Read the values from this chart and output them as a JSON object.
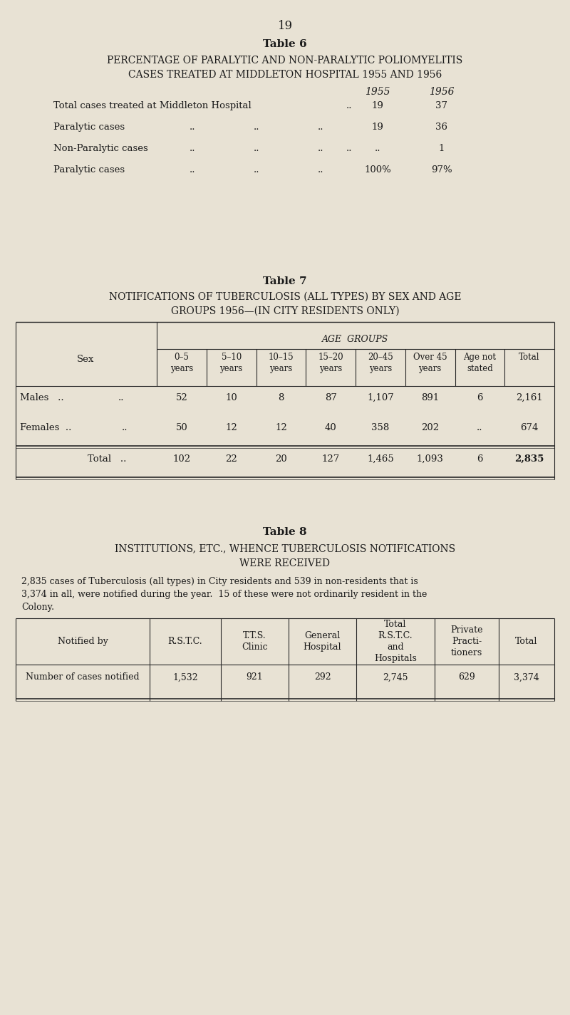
{
  "bg_color": "#e8e2d4",
  "text_color": "#1a1a1a",
  "page_number": "19",
  "table6": {
    "title": "Table 6",
    "subtitle_line1": "PERCENTAGE OF PARALYTIC AND NON-PARALYTIC POLIOMYELITIS",
    "subtitle_line2": "CASES TREATED AT MIDDLETON HOSPITAL 1955 AND 1956",
    "year1": "1955",
    "year2": "1956",
    "rows": [
      {
        "label": "Total cases treated at Middleton Hospital",
        "dots": "..",
        "v1955": "19",
        "v1956": "37"
      },
      {
        "label": "Paralytic cases",
        "dots": "..          ..          ..",
        "v1955": "19",
        "v1956": "36"
      },
      {
        "label": "Non-Paralytic cases",
        "dots": "..          ..          ..",
        "v1955": "..",
        "v1956": "1"
      },
      {
        "label": "Paralytic cases",
        "dots": "..          ..          ..",
        "v1955": "100%",
        "v1956": "97%"
      }
    ]
  },
  "table7": {
    "title": "Table 7",
    "subtitle_line1": "NOTIFICATIONS OF TUBERCULOSIS (ALL TYPES) BY SEX AND AGE",
    "subtitle_line2": "GROUPS 1956—(IN CITY RESIDENTS ONLY)",
    "age_group_header": "AGE  GROUPS",
    "sex_header": "Sex",
    "col_headers": [
      "0–5\nyears",
      "5–10\nyears",
      "10–15\nyears",
      "15–20\nyears",
      "20–45\nyears",
      "Over 45\nyears",
      "Age not\nstated",
      "Total"
    ],
    "rows": [
      {
        "label": "Males   ..",
        "dots": "        ..",
        "values": [
          "52",
          "10",
          "8",
          "87",
          "1,107",
          "891",
          "6",
          "2,161"
        ]
      },
      {
        "label": "Females  ..",
        "dots": "        ..",
        "values": [
          "50",
          "12",
          "12",
          "40",
          "358",
          "202",
          "..",
          "674"
        ]
      },
      {
        "label": "Total  ..",
        "dots": "",
        "values": [
          "102",
          "22",
          "20",
          "127",
          "1,465",
          "1,093",
          "6",
          "2,835"
        ]
      }
    ]
  },
  "table8": {
    "title": "Table 8",
    "subtitle_line1": "INSTITUTIONS, ETC., WHENCE TUBERCULOSIS NOTIFICATIONS",
    "subtitle_line2": "WERE RECEIVED",
    "paragraph_line1": "2,835 cases of Tuberculosis (all types) in City residents and 539 in non-residents that is",
    "paragraph_line2": "3,374 in all, were notified during the year.  15 of these were not ordinarily resident in the",
    "paragraph_line3": "Colony.",
    "col_headers": [
      "Notified by",
      "R.S.T.C.",
      "T.T.S.\nClinic",
      "General\nHospital",
      "Total\nR.S.T.C.\nand\nHospitals",
      "Private\nPracti-\ntioners",
      "Total"
    ],
    "data_row": [
      "Number of cases notified",
      "1,532",
      "921",
      "292",
      "2,745",
      "629",
      "3,374"
    ]
  }
}
